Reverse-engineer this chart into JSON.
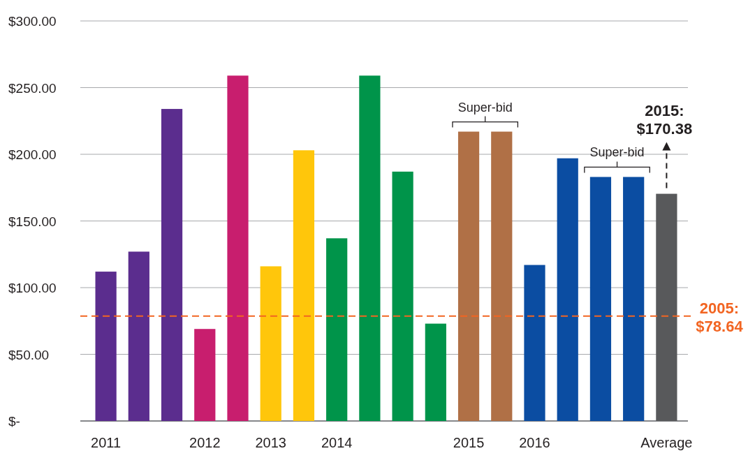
{
  "chart_data": {
    "type": "bar",
    "categories": [
      "2011",
      null,
      null,
      "2012",
      null,
      "2013",
      null,
      "2014",
      null,
      null,
      null,
      "2015",
      null,
      "2016",
      null,
      null,
      null,
      "Average"
    ],
    "values": [
      112,
      127,
      234,
      69,
      259,
      116,
      203,
      137,
      259,
      187,
      73,
      217,
      217,
      117,
      197,
      183,
      183,
      170.38
    ],
    "colors": [
      "#5b2d8e",
      "#5b2d8e",
      "#5b2d8e",
      "#c81e6e",
      "#c81e6e",
      "#ffc60b",
      "#ffc60b",
      "#00944a",
      "#00944a",
      "#00944a",
      "#00944a",
      "#b07046",
      "#b07046",
      "#0b4da2",
      "#0b4da2",
      "#0b4da2",
      "#0b4da2",
      "#58595b"
    ],
    "ylim": [
      0,
      300
    ],
    "yticks": [
      {
        "value": 0,
        "label": "$-"
      },
      {
        "value": 50,
        "label": "$50.00"
      },
      {
        "value": 100,
        "label": "$100.00"
      },
      {
        "value": 150,
        "label": "$150.00"
      },
      {
        "value": 200,
        "label": "$200.00"
      },
      {
        "value": 250,
        "label": "$250.00"
      },
      {
        "value": 300,
        "label": "$300.00"
      }
    ],
    "grid": "y",
    "ref_lines": [
      {
        "axis": "y",
        "value": 78.64,
        "label": "2005: $78.64",
        "color": "#f26522",
        "line_style": "dashed"
      }
    ],
    "annotations": [
      "Super-bid",
      "Super-bid",
      "2015: $170.38"
    ]
  }
}
